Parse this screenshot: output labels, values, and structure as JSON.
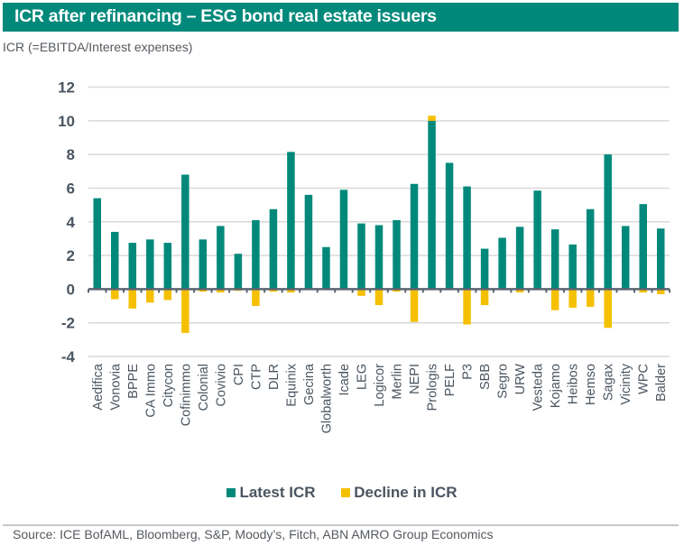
{
  "header": {
    "title": "ICR after refinancing – ESG bond real estate issuers"
  },
  "subtitle": "ICR (=EBITDA/Interest expenses)",
  "source": "Source: ICE BofAML, Bloomberg, S&P, Moody’s, Fitch, ABN AMRO Group Economics",
  "colors": {
    "latest": "#00897b",
    "decline": "#f5c000",
    "header": "#00897b",
    "axis": "#5a6470",
    "grid": "#d9d9d9",
    "text": "#4a5560"
  },
  "chart_data": {
    "type": "bar",
    "title": "ICR after refinancing – ESG bond real estate issuers",
    "ylabel": "ICR (=EBITDA/Interest expenses)",
    "xlabel": "",
    "ylim": [
      -4,
      12
    ],
    "yticks": [
      12,
      10,
      8,
      6,
      4,
      2,
      0,
      -2,
      -4
    ],
    "ytick_labels": [
      "12",
      "10",
      "8",
      "6",
      "4",
      "2",
      "0",
      "-2",
      "-4"
    ],
    "grid": true,
    "stacked": true,
    "legend_position": "bottom-center",
    "categories": [
      "Aedifica",
      "Vonovia",
      "BPPE",
      "CA Immo",
      "Citycon",
      "Cofinimmo",
      "Colonial",
      "Covivio",
      "CPI",
      "CTP",
      "DLR",
      "Equinix",
      "Gecina",
      "Globalworth",
      "Icade",
      "LEG",
      "Logicor",
      "Merlin",
      "NEPI",
      "Prologis",
      "PELF",
      "P3",
      "SBB",
      "Segro",
      "URW",
      "Vesteda",
      "Kojamo",
      "Heibos",
      "Hemso",
      "Sagax",
      "Vicinity",
      "WPC",
      "Balder"
    ],
    "series": [
      {
        "name": "Latest ICR",
        "color": "#00897b",
        "values": [
          5.4,
          3.4,
          2.75,
          2.95,
          2.75,
          6.8,
          2.95,
          3.75,
          2.1,
          4.1,
          4.75,
          8.15,
          5.6,
          2.5,
          5.9,
          3.9,
          3.8,
          4.1,
          6.25,
          10.0,
          7.5,
          6.1,
          2.4,
          3.05,
          3.7,
          5.85,
          3.55,
          2.65,
          4.75,
          8.0,
          3.75,
          5.05,
          3.6
        ]
      },
      {
        "name": "Decline in ICR",
        "color": "#f5c000",
        "values": [
          0,
          -0.6,
          -1.15,
          -0.8,
          -0.65,
          -2.6,
          -0.15,
          -0.2,
          -0.1,
          -1.0,
          -0.15,
          -0.2,
          0,
          0,
          0,
          -0.4,
          -0.95,
          -0.15,
          -1.95,
          0.3,
          0,
          -2.1,
          -0.95,
          0,
          -0.2,
          0,
          -1.25,
          -1.1,
          -1.05,
          -2.3,
          0,
          -0.2,
          -0.3
        ]
      }
    ]
  },
  "legend": [
    {
      "label": "Latest ICR",
      "color": "#00897b"
    },
    {
      "label": "Decline in ICR",
      "color": "#f5c000"
    }
  ]
}
